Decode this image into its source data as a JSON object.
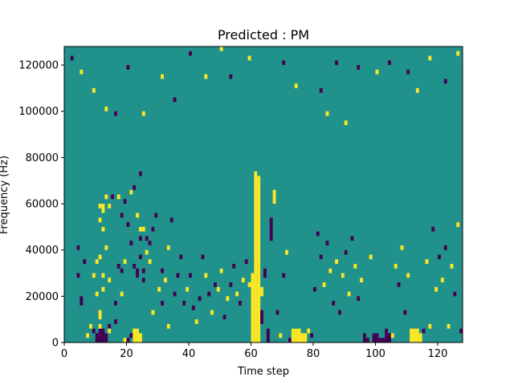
{
  "chart_data": {
    "type": "heatmap",
    "title": "Predicted : PM",
    "xlabel": "Time step",
    "ylabel": "Frequency (Hz)",
    "xlim": [
      0,
      128
    ],
    "ylim": [
      0,
      128000
    ],
    "x_ticks": [
      {
        "value": 0,
        "label": "0"
      },
      {
        "value": 20,
        "label": "20"
      },
      {
        "value": 40,
        "label": "40"
      },
      {
        "value": 60,
        "label": "60"
      },
      {
        "value": 80,
        "label": "80"
      },
      {
        "value": 100,
        "label": "100"
      },
      {
        "value": 120,
        "label": "120"
      }
    ],
    "y_ticks": [
      {
        "value": 0,
        "label": "0"
      },
      {
        "value": 20000,
        "label": "20000"
      },
      {
        "value": 40000,
        "label": "40000"
      },
      {
        "value": 60000,
        "label": "60000"
      },
      {
        "value": 80000,
        "label": "80000"
      },
      {
        "value": 100000,
        "label": "100000"
      },
      {
        "value": 120000,
        "label": "120000"
      }
    ],
    "colormap": {
      "low": "#440154",
      "mid": "#21918c",
      "high": "#fde725"
    },
    "background_value": "mid",
    "time_steps": 128,
    "frequency_bins": 64,
    "bin_width_hz": 2000,
    "cells": [
      {
        "t": 10,
        "f0": 0,
        "f1": 2,
        "v": "low"
      },
      {
        "t": 11,
        "f0": 0,
        "f1": 3,
        "v": "low"
      },
      {
        "t": 12,
        "f0": 0,
        "f1": 3,
        "v": "low"
      },
      {
        "t": 13,
        "f0": 0,
        "f1": 2,
        "v": "low"
      },
      {
        "t": 9,
        "f0": 2,
        "f1": 3,
        "v": "low"
      },
      {
        "t": 14,
        "f0": 3,
        "f1": 4,
        "v": "low"
      },
      {
        "t": 7,
        "f0": 1,
        "f1": 2,
        "v": "yellow"
      },
      {
        "t": 8,
        "f0": 3,
        "f1": 4,
        "v": "yellow"
      },
      {
        "t": 11,
        "f0": 3,
        "f1": 4,
        "v": "yellow"
      },
      {
        "t": 14,
        "f0": 2,
        "f1": 3,
        "v": "yellow"
      },
      {
        "t": 16,
        "f0": 4,
        "f1": 5,
        "v": "low"
      },
      {
        "t": 19,
        "f0": 0,
        "f1": 1,
        "v": "yellow"
      },
      {
        "t": 22,
        "f0": 0,
        "f1": 3,
        "v": "yellow"
      },
      {
        "t": 23,
        "f0": 0,
        "f1": 3,
        "v": "yellow"
      },
      {
        "t": 24,
        "f0": 0,
        "f1": 2,
        "v": "yellow"
      },
      {
        "t": 20,
        "f0": 0,
        "f1": 1,
        "v": "low"
      },
      {
        "t": 21,
        "f0": 1,
        "f1": 2,
        "v": "low"
      },
      {
        "t": 5,
        "f0": 8,
        "f1": 10,
        "v": "low"
      },
      {
        "t": 4,
        "f0": 14,
        "f1": 15,
        "v": "low"
      },
      {
        "t": 4,
        "f0": 20,
        "f1": 21,
        "v": "low"
      },
      {
        "t": 6,
        "f0": 17,
        "f1": 18,
        "v": "low"
      },
      {
        "t": 10,
        "f0": 17,
        "f1": 18,
        "v": "yellow"
      },
      {
        "t": 11,
        "f0": 18,
        "f1": 19,
        "v": "yellow"
      },
      {
        "t": 10,
        "f0": 10,
        "f1": 11,
        "v": "yellow"
      },
      {
        "t": 11,
        "f0": 5,
        "f1": 7,
        "v": "yellow"
      },
      {
        "t": 12,
        "f0": 11,
        "f1": 12,
        "v": "yellow"
      },
      {
        "t": 9,
        "f0": 14,
        "f1": 15,
        "v": "yellow"
      },
      {
        "t": 12,
        "f0": 14,
        "f1": 15,
        "v": "yellow"
      },
      {
        "t": 13,
        "f0": 20,
        "f1": 21,
        "v": "yellow"
      },
      {
        "t": 14,
        "f0": 13,
        "f1": 14,
        "v": "yellow"
      },
      {
        "t": 16,
        "f0": 8,
        "f1": 9,
        "v": "low"
      },
      {
        "t": 17,
        "f0": 16,
        "f1": 17,
        "v": "low"
      },
      {
        "t": 18,
        "f0": 10,
        "f1": 11,
        "v": "yellow"
      },
      {
        "t": 18,
        "f0": 15,
        "f1": 16,
        "v": "low"
      },
      {
        "t": 19,
        "f0": 17,
        "f1": 18,
        "v": "yellow"
      },
      {
        "t": 20,
        "f0": 25,
        "f1": 26,
        "v": "low"
      },
      {
        "t": 11,
        "f0": 26,
        "f1": 27,
        "v": "yellow"
      },
      {
        "t": 12,
        "f0": 24,
        "f1": 25,
        "v": "yellow"
      },
      {
        "t": 11,
        "f0": 29,
        "f1": 30,
        "v": "yellow"
      },
      {
        "t": 12,
        "f0": 28,
        "f1": 30,
        "v": "yellow"
      },
      {
        "t": 13,
        "f0": 31,
        "f1": 32,
        "v": "yellow"
      },
      {
        "t": 14,
        "f0": 29,
        "f1": 30,
        "v": "yellow"
      },
      {
        "t": 15,
        "f0": 31,
        "f1": 32,
        "v": "low"
      },
      {
        "t": 18,
        "f0": 27,
        "f1": 28,
        "v": "low"
      },
      {
        "t": 17,
        "f0": 31,
        "f1": 32,
        "v": "yellow"
      },
      {
        "t": 19,
        "f0": 30,
        "f1": 31,
        "v": "low"
      },
      {
        "t": 21,
        "f0": 32,
        "f1": 33,
        "v": "yellow"
      },
      {
        "t": 22,
        "f0": 33,
        "f1": 34,
        "v": "low"
      },
      {
        "t": 24,
        "f0": 36,
        "f1": 37,
        "v": "low"
      },
      {
        "t": 23,
        "f0": 27,
        "f1": 28,
        "v": "yellow"
      },
      {
        "t": 24,
        "f0": 24,
        "f1": 25,
        "v": "yellow"
      },
      {
        "t": 25,
        "f0": 24,
        "f1": 25,
        "v": "yellow"
      },
      {
        "t": 24,
        "f0": 22,
        "f1": 23,
        "v": "low"
      },
      {
        "t": 25,
        "f0": 13,
        "f1": 14,
        "v": "low"
      },
      {
        "t": 21,
        "f0": 21,
        "f1": 22,
        "v": "low"
      },
      {
        "t": 22,
        "f0": 16,
        "f1": 17,
        "v": "low"
      },
      {
        "t": 23,
        "f0": 14,
        "f1": 16,
        "v": "low"
      },
      {
        "t": 24,
        "f0": 18,
        "f1": 19,
        "v": "low"
      },
      {
        "t": 25,
        "f0": 15,
        "f1": 16,
        "v": "low"
      },
      {
        "t": 26,
        "f0": 22,
        "f1": 23,
        "v": "low"
      },
      {
        "t": 26,
        "f0": 19,
        "f1": 20,
        "v": "yellow"
      },
      {
        "t": 27,
        "f0": 21,
        "f1": 22,
        "v": "low"
      },
      {
        "t": 27,
        "f0": 17,
        "f1": 18,
        "v": "yellow"
      },
      {
        "t": 28,
        "f0": 6,
        "f1": 7,
        "v": "yellow"
      },
      {
        "t": 28,
        "f0": 24,
        "f1": 25,
        "v": "low"
      },
      {
        "t": 29,
        "f0": 27,
        "f1": 28,
        "v": "low"
      },
      {
        "t": 30,
        "f0": 11,
        "f1": 12,
        "v": "yellow"
      },
      {
        "t": 31,
        "f0": 8,
        "f1": 9,
        "v": "low"
      },
      {
        "t": 31,
        "f0": 15,
        "f1": 16,
        "v": "low"
      },
      {
        "t": 32,
        "f0": 13,
        "f1": 14,
        "v": "yellow"
      },
      {
        "t": 33,
        "f0": 20,
        "f1": 21,
        "v": "yellow"
      },
      {
        "t": 33,
        "f0": 3,
        "f1": 4,
        "v": "yellow"
      },
      {
        "t": 34,
        "f0": 26,
        "f1": 27,
        "v": "low"
      },
      {
        "t": 35,
        "f0": 10,
        "f1": 11,
        "v": "low"
      },
      {
        "t": 36,
        "f0": 14,
        "f1": 15,
        "v": "low"
      },
      {
        "t": 37,
        "f0": 18,
        "f1": 19,
        "v": "low"
      },
      {
        "t": 38,
        "f0": 8,
        "f1": 9,
        "v": "low"
      },
      {
        "t": 39,
        "f0": 11,
        "f1": 12,
        "v": "yellow"
      },
      {
        "t": 40,
        "f0": 14,
        "f1": 15,
        "v": "low"
      },
      {
        "t": 41,
        "f0": 7,
        "f1": 8,
        "v": "low"
      },
      {
        "t": 42,
        "f0": 4,
        "f1": 5,
        "v": "yellow"
      },
      {
        "t": 43,
        "f0": 9,
        "f1": 10,
        "v": "low"
      },
      {
        "t": 44,
        "f0": 18,
        "f1": 19,
        "v": "low"
      },
      {
        "t": 45,
        "f0": 14,
        "f1": 15,
        "v": "yellow"
      },
      {
        "t": 46,
        "f0": 10,
        "f1": 11,
        "v": "low"
      },
      {
        "t": 47,
        "f0": 6,
        "f1": 7,
        "v": "yellow"
      },
      {
        "t": 48,
        "f0": 12,
        "f1": 13,
        "v": "low"
      },
      {
        "t": 49,
        "f0": 11,
        "f1": 12,
        "v": "yellow"
      },
      {
        "t": 50,
        "f0": 15,
        "f1": 16,
        "v": "yellow"
      },
      {
        "t": 51,
        "f0": 5,
        "f1": 6,
        "v": "low"
      },
      {
        "t": 52,
        "f0": 9,
        "f1": 10,
        "v": "yellow"
      },
      {
        "t": 53,
        "f0": 12,
        "f1": 13,
        "v": "low"
      },
      {
        "t": 54,
        "f0": 16,
        "f1": 17,
        "v": "low"
      },
      {
        "t": 55,
        "f0": 10,
        "f1": 11,
        "v": "yellow"
      },
      {
        "t": 56,
        "f0": 8,
        "f1": 9,
        "v": "low"
      },
      {
        "t": 57,
        "f0": 13,
        "f1": 14,
        "v": "yellow"
      },
      {
        "t": 58,
        "f0": 17,
        "f1": 18,
        "v": "low"
      },
      {
        "t": 59,
        "f0": 12,
        "f1": 13,
        "v": "yellow"
      },
      {
        "t": 60,
        "f0": 0,
        "f1": 15,
        "v": "yellow"
      },
      {
        "t": 61,
        "f0": 0,
        "f1": 37,
        "v": "yellow"
      },
      {
        "t": 62,
        "f0": 0,
        "f1": 36,
        "v": "yellow"
      },
      {
        "t": 63,
        "f0": 4,
        "f1": 7,
        "v": "low"
      },
      {
        "t": 63,
        "f0": 10,
        "f1": 12,
        "v": "yellow"
      },
      {
        "t": 64,
        "f0": 14,
        "f1": 16,
        "v": "low"
      },
      {
        "t": 65,
        "f0": 0,
        "f1": 3,
        "v": "low"
      },
      {
        "t": 66,
        "f0": 22,
        "f1": 27,
        "v": "low"
      },
      {
        "t": 67,
        "f0": 30,
        "f1": 33,
        "v": "yellow"
      },
      {
        "t": 68,
        "f0": 6,
        "f1": 7,
        "v": "low"
      },
      {
        "t": 69,
        "f0": 1,
        "f1": 2,
        "v": "yellow"
      },
      {
        "t": 70,
        "f0": 14,
        "f1": 15,
        "v": "low"
      },
      {
        "t": 71,
        "f0": 19,
        "f1": 20,
        "v": "yellow"
      },
      {
        "t": 72,
        "f0": 0,
        "f1": 1,
        "v": "low"
      },
      {
        "t": 73,
        "f0": 0,
        "f1": 3,
        "v": "yellow"
      },
      {
        "t": 74,
        "f0": 0,
        "f1": 3,
        "v": "yellow"
      },
      {
        "t": 75,
        "f0": 0,
        "f1": 3,
        "v": "yellow"
      },
      {
        "t": 76,
        "f0": 0,
        "f1": 2,
        "v": "yellow"
      },
      {
        "t": 77,
        "f0": 0,
        "f1": 2,
        "v": "yellow"
      },
      {
        "t": 78,
        "f0": 2,
        "f1": 3,
        "v": "yellow"
      },
      {
        "t": 79,
        "f0": 1,
        "f1": 2,
        "v": "low"
      },
      {
        "t": 80,
        "f0": 11,
        "f1": 12,
        "v": "low"
      },
      {
        "t": 81,
        "f0": 23,
        "f1": 24,
        "v": "low"
      },
      {
        "t": 82,
        "f0": 18,
        "f1": 19,
        "v": "low"
      },
      {
        "t": 83,
        "f0": 12,
        "f1": 13,
        "v": "yellow"
      },
      {
        "t": 84,
        "f0": 21,
        "f1": 22,
        "v": "low"
      },
      {
        "t": 85,
        "f0": 15,
        "f1": 16,
        "v": "yellow"
      },
      {
        "t": 86,
        "f0": 8,
        "f1": 9,
        "v": "low"
      },
      {
        "t": 87,
        "f0": 17,
        "f1": 18,
        "v": "yellow"
      },
      {
        "t": 88,
        "f0": 6,
        "f1": 7,
        "v": "low"
      },
      {
        "t": 89,
        "f0": 14,
        "f1": 15,
        "v": "yellow"
      },
      {
        "t": 90,
        "f0": 19,
        "f1": 20,
        "v": "low"
      },
      {
        "t": 91,
        "f0": 10,
        "f1": 11,
        "v": "yellow"
      },
      {
        "t": 92,
        "f0": 22,
        "f1": 23,
        "v": "low"
      },
      {
        "t": 93,
        "f0": 16,
        "f1": 17,
        "v": "yellow"
      },
      {
        "t": 94,
        "f0": 9,
        "f1": 10,
        "v": "low"
      },
      {
        "t": 95,
        "f0": 13,
        "f1": 14,
        "v": "yellow"
      },
      {
        "t": 96,
        "f0": 0,
        "f1": 2,
        "v": "low"
      },
      {
        "t": 97,
        "f0": 0,
        "f1": 1,
        "v": "low"
      },
      {
        "t": 98,
        "f0": 18,
        "f1": 19,
        "v": "yellow"
      },
      {
        "t": 99,
        "f0": 0,
        "f1": 2,
        "v": "low"
      },
      {
        "t": 100,
        "f0": 0,
        "f1": 2,
        "v": "low"
      },
      {
        "t": 101,
        "f0": 0,
        "f1": 1,
        "v": "low"
      },
      {
        "t": 102,
        "f0": 0,
        "f1": 1,
        "v": "low"
      },
      {
        "t": 103,
        "f0": 0,
        "f1": 3,
        "v": "low"
      },
      {
        "t": 104,
        "f0": 0,
        "f1": 2,
        "v": "low"
      },
      {
        "t": 105,
        "f0": 1,
        "f1": 2,
        "v": "yellow"
      },
      {
        "t": 106,
        "f0": 16,
        "f1": 17,
        "v": "yellow"
      },
      {
        "t": 107,
        "f0": 12,
        "f1": 13,
        "v": "low"
      },
      {
        "t": 108,
        "f0": 20,
        "f1": 21,
        "v": "yellow"
      },
      {
        "t": 109,
        "f0": 6,
        "f1": 7,
        "v": "low"
      },
      {
        "t": 110,
        "f0": 14,
        "f1": 15,
        "v": "yellow"
      },
      {
        "t": 111,
        "f0": 0,
        "f1": 3,
        "v": "yellow"
      },
      {
        "t": 112,
        "f0": 0,
        "f1": 3,
        "v": "yellow"
      },
      {
        "t": 113,
        "f0": 0,
        "f1": 3,
        "v": "yellow"
      },
      {
        "t": 114,
        "f0": 0,
        "f1": 2,
        "v": "yellow"
      },
      {
        "t": 115,
        "f0": 2,
        "f1": 3,
        "v": "low"
      },
      {
        "t": 116,
        "f0": 17,
        "f1": 18,
        "v": "yellow"
      },
      {
        "t": 117,
        "f0": 3,
        "f1": 4,
        "v": "yellow"
      },
      {
        "t": 118,
        "f0": 24,
        "f1": 25,
        "v": "low"
      },
      {
        "t": 119,
        "f0": 11,
        "f1": 12,
        "v": "yellow"
      },
      {
        "t": 120,
        "f0": 18,
        "f1": 19,
        "v": "low"
      },
      {
        "t": 121,
        "f0": 13,
        "f1": 14,
        "v": "yellow"
      },
      {
        "t": 122,
        "f0": 20,
        "f1": 21,
        "v": "low"
      },
      {
        "t": 123,
        "f0": 3,
        "f1": 4,
        "v": "yellow"
      },
      {
        "t": 124,
        "f0": 16,
        "f1": 17,
        "v": "yellow"
      },
      {
        "t": 125,
        "f0": 10,
        "f1": 11,
        "v": "low"
      },
      {
        "t": 126,
        "f0": 25,
        "f1": 26,
        "v": "yellow"
      },
      {
        "t": 127,
        "f0": 2,
        "f1": 3,
        "v": "low"
      },
      {
        "t": 2,
        "f0": 61,
        "f1": 62,
        "v": "low"
      },
      {
        "t": 5,
        "f0": 58,
        "f1": 59,
        "v": "yellow"
      },
      {
        "t": 9,
        "f0": 54,
        "f1": 55,
        "v": "yellow"
      },
      {
        "t": 13,
        "f0": 50,
        "f1": 51,
        "v": "yellow"
      },
      {
        "t": 16,
        "f0": 49,
        "f1": 50,
        "v": "low"
      },
      {
        "t": 20,
        "f0": 59,
        "f1": 60,
        "v": "low"
      },
      {
        "t": 25,
        "f0": 49,
        "f1": 50,
        "v": "yellow"
      },
      {
        "t": 31,
        "f0": 57,
        "f1": 58,
        "v": "yellow"
      },
      {
        "t": 35,
        "f0": 52,
        "f1": 53,
        "v": "low"
      },
      {
        "t": 40,
        "f0": 62,
        "f1": 63,
        "v": "low"
      },
      {
        "t": 45,
        "f0": 57,
        "f1": 58,
        "v": "yellow"
      },
      {
        "t": 50,
        "f0": 63,
        "f1": 64,
        "v": "yellow"
      },
      {
        "t": 53,
        "f0": 57,
        "f1": 58,
        "v": "low"
      },
      {
        "t": 59,
        "f0": 61,
        "f1": 62,
        "v": "yellow"
      },
      {
        "t": 70,
        "f0": 60,
        "f1": 61,
        "v": "low"
      },
      {
        "t": 74,
        "f0": 55,
        "f1": 56,
        "v": "yellow"
      },
      {
        "t": 82,
        "f0": 54,
        "f1": 55,
        "v": "low"
      },
      {
        "t": 84,
        "f0": 49,
        "f1": 50,
        "v": "yellow"
      },
      {
        "t": 87,
        "f0": 60,
        "f1": 61,
        "v": "low"
      },
      {
        "t": 90,
        "f0": 47,
        "f1": 48,
        "v": "yellow"
      },
      {
        "t": 94,
        "f0": 59,
        "f1": 60,
        "v": "low"
      },
      {
        "t": 100,
        "f0": 58,
        "f1": 59,
        "v": "yellow"
      },
      {
        "t": 104,
        "f0": 60,
        "f1": 61,
        "v": "low"
      },
      {
        "t": 110,
        "f0": 58,
        "f1": 59,
        "v": "low"
      },
      {
        "t": 113,
        "f0": 54,
        "f1": 55,
        "v": "yellow"
      },
      {
        "t": 117,
        "f0": 61,
        "f1": 62,
        "v": "yellow"
      },
      {
        "t": 122,
        "f0": 56,
        "f1": 57,
        "v": "low"
      },
      {
        "t": 126,
        "f0": 62,
        "f1": 63,
        "v": "yellow"
      }
    ]
  }
}
